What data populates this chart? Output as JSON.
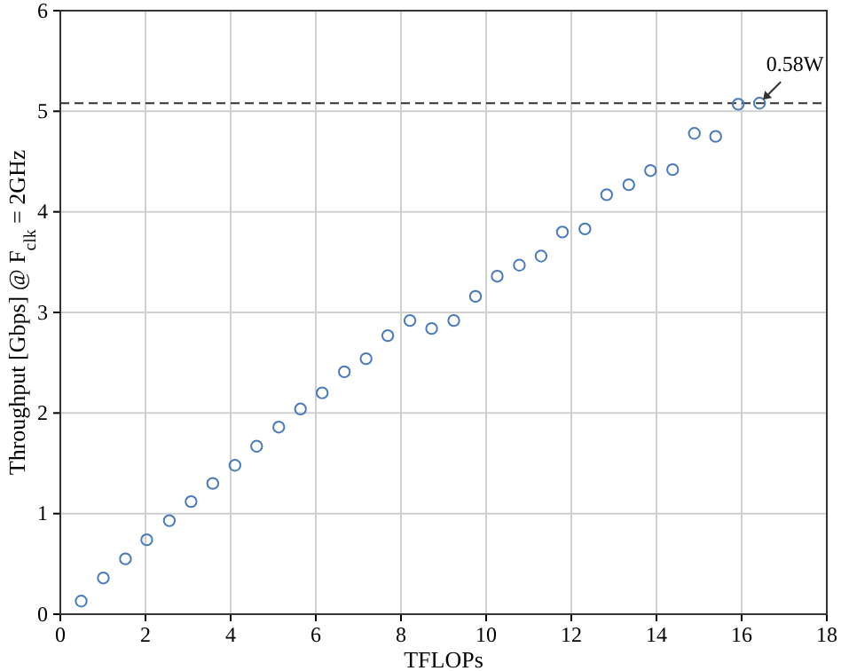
{
  "chart_data": {
    "type": "scatter",
    "xlabel": "TFLOPs",
    "ylabel": "Throughput [Gbps] @ F$_{clk}$ = 2GHz",
    "x": [
      0.49,
      1.01,
      1.53,
      2.03,
      2.56,
      3.07,
      3.58,
      4.1,
      4.61,
      5.13,
      5.64,
      6.15,
      6.67,
      7.18,
      7.69,
      8.21,
      8.72,
      9.24,
      9.75,
      10.26,
      10.78,
      11.29,
      11.79,
      12.32,
      12.83,
      13.35,
      13.86,
      14.38,
      14.89,
      15.39,
      15.92,
      16.42
    ],
    "series": [
      {
        "color": "#4a7ab8",
        "values": [
          0.13,
          0.36,
          0.55,
          0.74,
          0.93,
          1.12,
          1.3,
          1.48,
          1.67,
          1.86,
          2.04,
          2.2,
          2.41,
          2.54,
          2.77,
          2.92,
          2.84,
          2.92,
          3.16,
          3.36,
          3.47,
          3.56,
          3.8,
          3.83,
          4.17,
          4.27,
          4.41,
          4.42,
          4.78,
          4.75,
          5.07,
          5.08
        ]
      }
    ],
    "xlim": [
      0,
      18
    ],
    "xticks": [
      0,
      2,
      4,
      6,
      8,
      10,
      12,
      14,
      16,
      18
    ],
    "ylim": [
      0,
      6
    ],
    "yticks": [
      0,
      1,
      2,
      3,
      4,
      5,
      6
    ],
    "grid": true,
    "marker": "circle",
    "ref_lines": [
      {
        "axis": "y",
        "value": 5.08,
        "line_style": "dashed",
        "color": "#333333"
      }
    ],
    "annotations": [
      {
        "text": "0.58W",
        "x": 16.42,
        "y": 5.08
      }
    ]
  }
}
